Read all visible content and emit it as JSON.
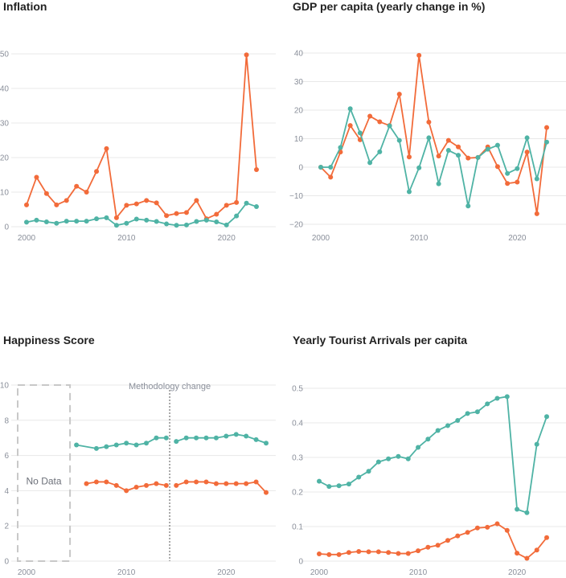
{
  "colors": {
    "teal": "#4fb3a5",
    "orange": "#f26b3a",
    "grid": "#e8e8e8",
    "nodata_box": "#c8c8c8"
  },
  "chart_data": [
    {
      "id": "inflation",
      "type": "line",
      "title": "Inflation",
      "ylim": [
        0,
        50
      ],
      "yticks": [
        "0",
        "10",
        "20",
        "30",
        "40",
        "50"
      ],
      "xlim": [
        2000,
        2023
      ],
      "xticks": [
        "2000",
        "2010",
        "2020"
      ],
      "x": [
        2000,
        2001,
        2002,
        2003,
        2004,
        2005,
        2006,
        2007,
        2008,
        2009,
        2010,
        2011,
        2012,
        2013,
        2014,
        2015,
        2016,
        2017,
        2018,
        2019,
        2020,
        2021,
        2022,
        2023
      ],
      "series": [
        {
          "color": "orange",
          "values": [
            6.3,
            14.3,
            9.6,
            6.3,
            7.6,
            11.7,
            10.0,
            16.0,
            22.6,
            2.6,
            6.2,
            6.6,
            7.6,
            6.9,
            3.2,
            3.8,
            4.1,
            7.6,
            2.3,
            3.6,
            6.2,
            7.0,
            49.7,
            16.5
          ]
        },
        {
          "color": "teal",
          "values": [
            1.3,
            1.9,
            1.4,
            1.0,
            1.6,
            1.6,
            1.6,
            2.3,
            2.6,
            0.4,
            1.0,
            2.2,
            1.9,
            1.5,
            0.8,
            0.4,
            0.5,
            1.5,
            1.9,
            1.4,
            0.5,
            3.1,
            6.8,
            5.8
          ]
        }
      ]
    },
    {
      "id": "gdp",
      "type": "line",
      "title": "GDP per capita (yearly change in %)",
      "ylim": [
        -20,
        40
      ],
      "yticks": [
        "−20",
        "−10",
        "0",
        "10",
        "20",
        "30",
        "40"
      ],
      "xlim": [
        2000,
        2023
      ],
      "xticks": [
        "2000",
        "2010",
        "2020"
      ],
      "x": [
        2000,
        2001,
        2002,
        2003,
        2004,
        2005,
        2006,
        2007,
        2008,
        2009,
        2010,
        2011,
        2012,
        2013,
        2014,
        2015,
        2016,
        2017,
        2018,
        2019,
        2020,
        2021,
        2022,
        2023
      ],
      "series": [
        {
          "color": "orange",
          "values": [
            0.0,
            -3.5,
            5.3,
            14.6,
            9.6,
            17.9,
            15.9,
            14.6,
            25.6,
            3.6,
            39.2,
            15.8,
            3.9,
            9.4,
            7.1,
            3.2,
            3.4,
            7.1,
            0.2,
            -5.7,
            -5.2,
            5.3,
            -16.3,
            13.9
          ]
        },
        {
          "color": "teal",
          "values": [
            0.0,
            0.0,
            6.9,
            20.5,
            12.0,
            1.6,
            5.4,
            14.5,
            9.4,
            -8.6,
            -0.2,
            10.3,
            -5.8,
            5.9,
            4.2,
            -13.6,
            3.4,
            6.3,
            7.7,
            -2.2,
            -0.5,
            10.3,
            -4.1,
            8.8
          ]
        }
      ]
    },
    {
      "id": "happiness",
      "type": "line",
      "title": "Happiness Score",
      "ylim": [
        0,
        10
      ],
      "yticks": [
        "0",
        "2",
        "4",
        "6",
        "8",
        "10"
      ],
      "xlim": [
        2000,
        2024
      ],
      "xticks": [
        "2000",
        "2010",
        "2020"
      ],
      "annotation": "Methodology change",
      "nodata_label": "No Data",
      "nodata_range": [
        2000,
        2005
      ],
      "methodology_change_x": 2014.5,
      "series": [
        {
          "color": "teal",
          "segments": [
            {
              "x": [
                2005,
                2007,
                2008,
                2009,
                2010,
                2011,
                2012,
                2013,
                2014
              ],
              "values": [
                6.6,
                6.4,
                6.5,
                6.6,
                6.7,
                6.6,
                6.7,
                7.0,
                7.0
              ]
            },
            {
              "x": [
                2015,
                2016,
                2017,
                2018,
                2019,
                2020,
                2021,
                2022,
                2023,
                2024
              ],
              "values": [
                6.8,
                7.0,
                7.0,
                7.0,
                7.0,
                7.1,
                7.2,
                7.1,
                6.9,
                6.7
              ]
            }
          ]
        },
        {
          "color": "orange",
          "segments": [
            {
              "x": [
                2006,
                2007,
                2008,
                2009,
                2010,
                2011,
                2012,
                2013,
                2014
              ],
              "values": [
                4.4,
                4.5,
                4.5,
                4.3,
                4.0,
                4.2,
                4.3,
                4.4,
                4.3
              ]
            },
            {
              "x": [
                2015,
                2016,
                2017,
                2018,
                2019,
                2020,
                2021,
                2022,
                2023,
                2024
              ],
              "values": [
                4.3,
                4.5,
                4.5,
                4.5,
                4.4,
                4.4,
                4.4,
                4.4,
                4.5,
                3.9
              ]
            }
          ]
        }
      ]
    },
    {
      "id": "tourism",
      "type": "line",
      "title": "Yearly Tourist Arrivals per capita",
      "ylim": [
        0,
        0.5
      ],
      "yticks": [
        "0",
        "0.1",
        "0.2",
        "0.3",
        "0.4",
        "0.5"
      ],
      "xlim": [
        2000,
        2023
      ],
      "xticks": [
        "2000",
        "2010",
        "2020"
      ],
      "x": [
        2000,
        2001,
        2002,
        2003,
        2004,
        2005,
        2006,
        2007,
        2008,
        2009,
        2010,
        2011,
        2012,
        2013,
        2014,
        2015,
        2016,
        2017,
        2018,
        2019,
        2020,
        2021,
        2022,
        2023
      ],
      "series": [
        {
          "color": "teal",
          "values": [
            0.231,
            0.216,
            0.218,
            0.223,
            0.243,
            0.26,
            0.287,
            0.296,
            0.303,
            0.296,
            0.329,
            0.353,
            0.378,
            0.392,
            0.407,
            0.427,
            0.432,
            0.455,
            0.471,
            0.476,
            0.15,
            0.14,
            0.338,
            0.418
          ]
        },
        {
          "color": "orange",
          "values": [
            0.021,
            0.019,
            0.019,
            0.025,
            0.028,
            0.027,
            0.027,
            0.025,
            0.022,
            0.022,
            0.03,
            0.04,
            0.046,
            0.06,
            0.073,
            0.083,
            0.096,
            0.098,
            0.108,
            0.089,
            0.023,
            0.008,
            0.032,
            0.068
          ]
        }
      ]
    }
  ]
}
